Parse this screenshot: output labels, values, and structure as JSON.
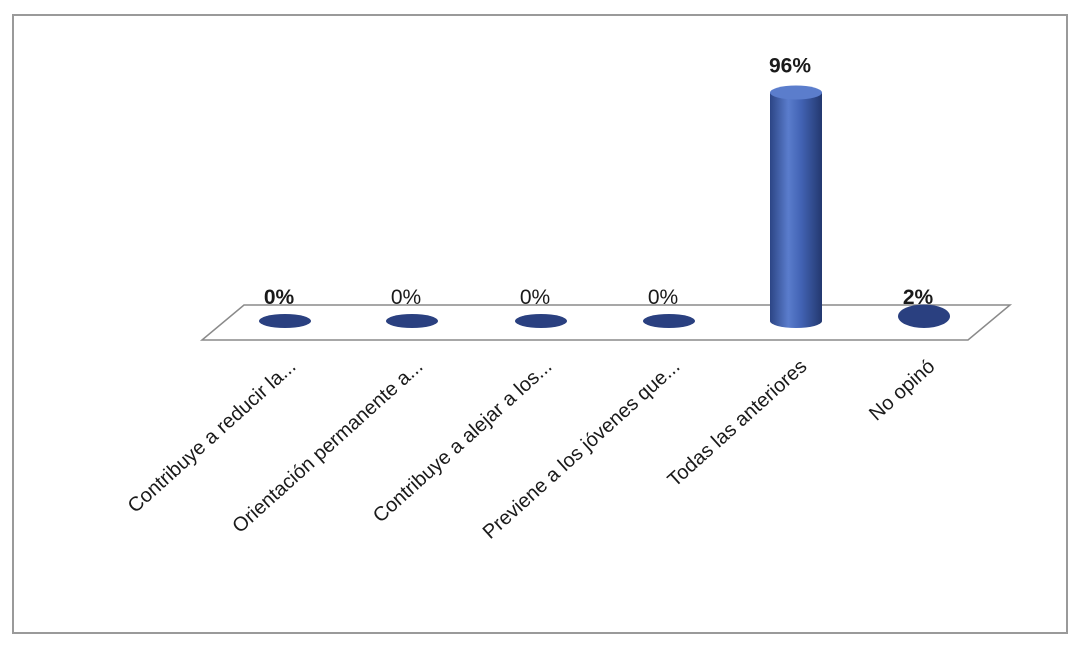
{
  "chart_data": {
    "type": "bar",
    "categories": [
      "Contribuye a reducir la...",
      "Orientación permanente a...",
      "Contribuye a alejar a los...",
      "Previene a los jóvenes que...",
      "Todas las anteriores",
      "No opinó"
    ],
    "values": [
      0,
      0,
      0,
      0,
      96,
      2
    ],
    "data_labels": [
      "0%",
      "0%",
      "0%",
      "0%",
      "96%",
      "2%"
    ],
    "ylim": [
      0,
      100
    ],
    "grid": false,
    "legend": "none",
    "style": "3d-cylinder",
    "colors": {
      "bar": "#3f5fb0",
      "bar_dark": "#2a4080",
      "frame": "#9a9a9a",
      "floor": "#8a8a8a"
    }
  }
}
